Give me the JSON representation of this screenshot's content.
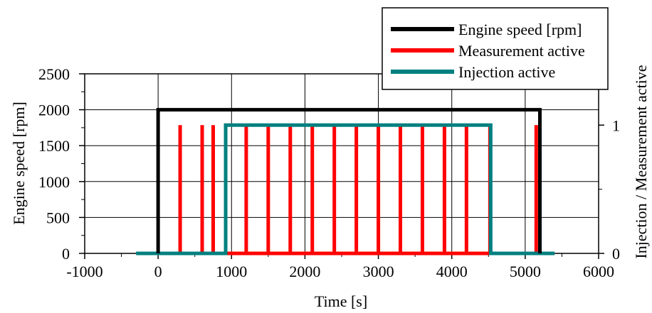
{
  "chart_data": {
    "type": "line",
    "title": "",
    "xlabel": "Time [s]",
    "ylabel": "Engine speed [rpm]",
    "y2label": "Injection / Measurement active",
    "xlim": [
      -1000,
      6000
    ],
    "ylim": [
      0,
      2500
    ],
    "y2lim": [
      0,
      1.4
    ],
    "xticks": [
      -1000,
      0,
      1000,
      2000,
      3000,
      4000,
      5000,
      6000
    ],
    "yticks": [
      0,
      500,
      1000,
      1500,
      2000,
      2500
    ],
    "y2ticks": [
      0,
      1
    ],
    "grid": true,
    "legend_position": "top-right",
    "series": [
      {
        "name": "Engine speed [rpm]",
        "axis": "left",
        "color": "#000000",
        "x": [
          0,
          0,
          5200,
          5200
        ],
        "y": [
          0,
          2000,
          2000,
          0
        ]
      },
      {
        "name": "Measurement active",
        "axis": "right",
        "color": "#ff0000",
        "pulses": [
          300,
          600,
          750,
          1200,
          1500,
          1800,
          2100,
          2400,
          2700,
          3000,
          3300,
          3600,
          3900,
          4200,
          4520,
          5150
        ],
        "pulse_value": 1,
        "x_start": 900,
        "x_end": 4520
      },
      {
        "name": "Injection active",
        "axis": "right",
        "color": "#008080",
        "x": [
          -300,
          920,
          920,
          4530,
          4530,
          5400
        ],
        "y": [
          0,
          0,
          1,
          1,
          0,
          0
        ]
      }
    ]
  }
}
